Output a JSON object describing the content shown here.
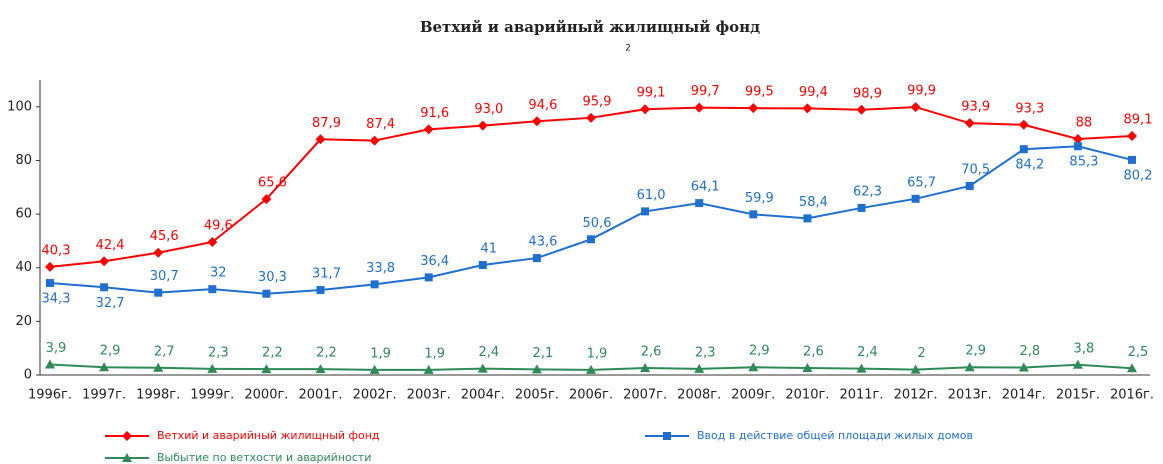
{
  "chart_data": {
    "type": "line",
    "title": "Ветхий и аварийный жилищный фонд",
    "subtitle": "2",
    "categories": [
      "1996г.",
      "1997г.",
      "1998г.",
      "1999г.",
      "2000г.",
      "2001г.",
      "2002г.",
      "2003г.",
      "2004г.",
      "2005г.",
      "2006г.",
      "2007г.",
      "2008г.",
      "2009г.",
      "2010г.",
      "2011г.",
      "2012г.",
      "2013г.",
      "2014г.",
      "2015г.",
      "2016г."
    ],
    "series": [
      {
        "name": "Ветхий и аварийный жилищный фонд",
        "color": "#ff0000",
        "marker": "diamond",
        "values": [
          40.3,
          42.4,
          45.6,
          49.6,
          65.6,
          87.9,
          87.4,
          91.6,
          93.0,
          94.6,
          95.9,
          99.1,
          99.7,
          99.5,
          99.4,
          98.9,
          99.9,
          93.9,
          93.3,
          88,
          89.1
        ],
        "value_labels": [
          "40,3",
          "42,4",
          "45,6",
          "49,6",
          "65,6",
          "87,9",
          "87,4",
          "91,6",
          "93,0",
          "94,6",
          "95,9",
          "99,1",
          "99,7",
          "99,5",
          "99,4",
          "98,9",
          "99,9",
          "93,9",
          "93,3",
          "88",
          "89,1"
        ]
      },
      {
        "name": "Ввод в действие общей площади жилых домов",
        "color": "#1f6fd1",
        "marker": "square",
        "values": [
          34.3,
          32.7,
          30.7,
          32,
          30.3,
          31.7,
          33.8,
          36.4,
          41,
          43.6,
          50.6,
          61.0,
          64.1,
          59.9,
          58.4,
          62.3,
          65.7,
          70.5,
          84.2,
          85.3,
          80.2
        ],
        "value_labels": [
          "34,3",
          "32,7",
          "30,7",
          "32",
          "30,3",
          "31,7",
          "33,8",
          "36,4",
          "41",
          "43,6",
          "50,6",
          "61,0",
          "64,1",
          "59,9",
          "58,4",
          "62,3",
          "65,7",
          "70,5",
          "84,2",
          "85,3",
          "80,2"
        ]
      },
      {
        "name": "Выбытие по ветхости и аварийности",
        "color": "#2e8b57",
        "marker": "triangle",
        "values": [
          3.9,
          2.9,
          2.7,
          2.3,
          2.2,
          2.2,
          1.9,
          1.9,
          2.4,
          2.1,
          1.9,
          2.6,
          2.3,
          2.9,
          2.6,
          2.4,
          2,
          2.9,
          2.8,
          3.8,
          2.5
        ],
        "value_labels": [
          "3,9",
          "2,9",
          "2,7",
          "2,3",
          "2,2",
          "2,2",
          "1,9",
          "1,9",
          "2,4",
          "2,1",
          "1,9",
          "2,6",
          "2,3",
          "2,9",
          "2,6",
          "2,4",
          "2",
          "2,9",
          "2,8",
          "3,8",
          "2,5"
        ]
      }
    ],
    "ylim": [
      0,
      110
    ],
    "yticks": [
      0,
      20,
      40,
      60,
      80,
      100
    ],
    "grid": false
  }
}
